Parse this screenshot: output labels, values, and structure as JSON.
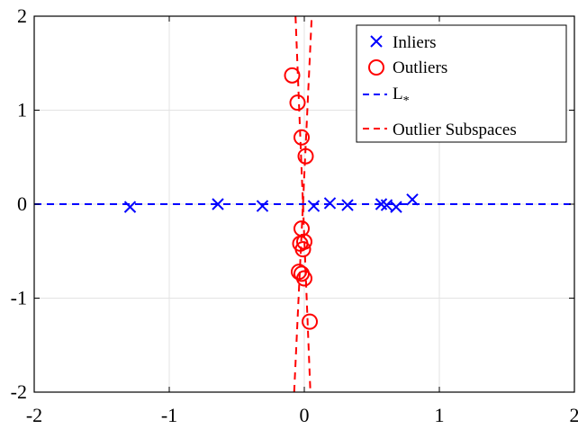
{
  "chart_data": {
    "type": "scatter",
    "xlim": [
      -2,
      2
    ],
    "ylim": [
      -2,
      2
    ],
    "xticks": [
      -2,
      -1,
      0,
      1,
      2
    ],
    "yticks": [
      -2,
      -1,
      0,
      1,
      2
    ],
    "xtick_labels": [
      "-2",
      "-1",
      "0",
      "1",
      "2"
    ],
    "ytick_labels": [
      "-2",
      "-1",
      "0",
      "1",
      "2"
    ],
    "grid": true,
    "legend_position": "top-right",
    "title": "",
    "xlabel": "",
    "ylabel": "",
    "colors": {
      "inliers": "#0000ff",
      "outliers": "#ff0000"
    },
    "series": [
      {
        "name": "Inliers",
        "marker": "x",
        "color": "#0000ff",
        "points": [
          [
            -1.29,
            -0.03
          ],
          [
            -0.64,
            0.0
          ],
          [
            -0.31,
            -0.02
          ],
          [
            0.07,
            -0.02
          ],
          [
            0.19,
            0.01
          ],
          [
            0.32,
            -0.01
          ],
          [
            0.57,
            0.0
          ],
          [
            0.61,
            -0.01
          ],
          [
            0.68,
            -0.03
          ],
          [
            0.8,
            0.05
          ]
        ]
      },
      {
        "name": "Outliers",
        "marker": "o",
        "color": "#ff0000",
        "points": [
          [
            -0.09,
            1.37
          ],
          [
            -0.05,
            1.08
          ],
          [
            -0.02,
            0.71
          ],
          [
            0.01,
            0.51
          ],
          [
            -0.02,
            -0.26
          ],
          [
            -0.03,
            -0.42
          ],
          [
            0.0,
            -0.4
          ],
          [
            -0.01,
            -0.48
          ],
          [
            -0.04,
            -0.72
          ],
          [
            -0.02,
            -0.74
          ],
          [
            0.0,
            -0.79
          ],
          [
            0.04,
            -1.25
          ]
        ]
      },
      {
        "name": "L*",
        "style": "dashed-line",
        "color": "#0000ff",
        "x": [
          -2,
          2
        ],
        "y": [
          0,
          0
        ]
      },
      {
        "name": "Outlier Subspaces",
        "style": "dashed-line",
        "color": "#ff0000",
        "lines": [
          {
            "x": [
              -0.065,
              0.045
            ],
            "y": [
              2,
              -2
            ]
          },
          {
            "x": [
              -0.075,
              0.055
            ],
            "y": [
              -2,
              2
            ]
          }
        ]
      }
    ],
    "legend": {
      "entries": [
        "Inliers",
        "Outliers",
        "L",
        "Outlier Subspaces"
      ],
      "l_subscript": "*"
    }
  }
}
